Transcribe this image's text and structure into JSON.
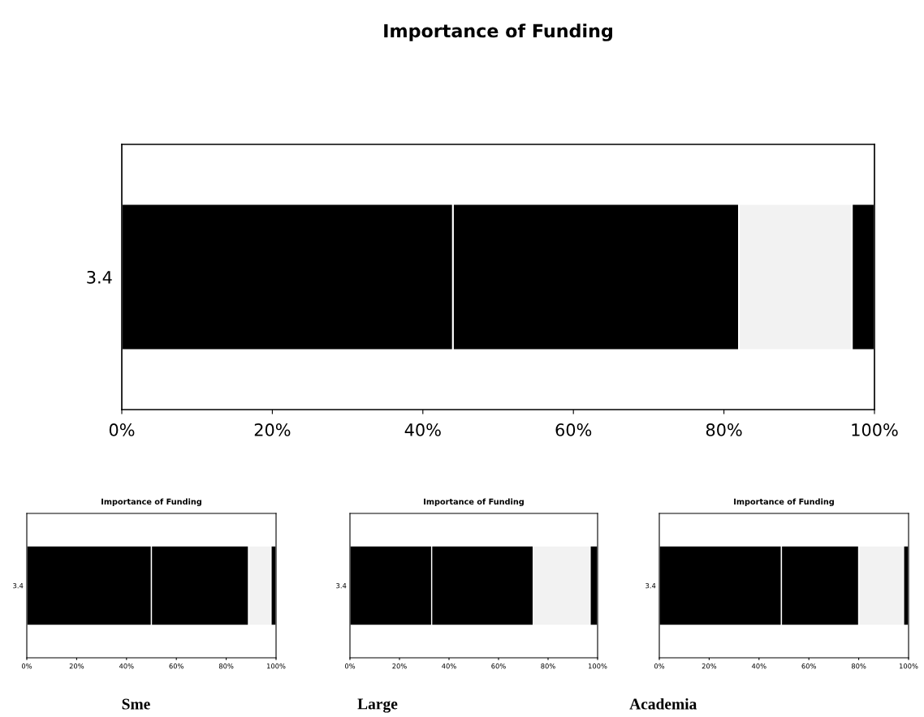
{
  "chart_data": [
    {
      "type": "bar",
      "title": "Importance of Funding",
      "orientation": "horizontal",
      "stacked": true,
      "categories": [
        "3.4"
      ],
      "series": [
        {
          "color": "#000000",
          "values": [
            44
          ]
        },
        {
          "color": "#000000",
          "values": [
            38
          ]
        },
        {
          "color": "#f2f2f2",
          "values": [
            15
          ]
        },
        {
          "color": "#000000",
          "values": [
            3
          ]
        }
      ],
      "xlim": [
        0,
        100
      ],
      "xticks": [
        {
          "value": 0,
          "label": "0%"
        },
        {
          "value": 20,
          "label": "20%"
        },
        {
          "value": 40,
          "label": "40%"
        },
        {
          "value": 60,
          "label": "60%"
        },
        {
          "value": 80,
          "label": "80%"
        },
        {
          "value": 100,
          "label": "100%"
        }
      ]
    },
    {
      "type": "bar",
      "title": "Importance of Funding",
      "orientation": "horizontal",
      "stacked": true,
      "categories": [
        "3.4"
      ],
      "series": [
        {
          "color": "#000000",
          "values": [
            50
          ]
        },
        {
          "color": "#000000",
          "values": [
            39
          ]
        },
        {
          "color": "#f2f2f2",
          "values": [
            9
          ]
        },
        {
          "color": "#000000",
          "values": [
            2
          ]
        }
      ],
      "xlim": [
        0,
        100
      ],
      "xticks": [
        {
          "value": 0,
          "label": "0%"
        },
        {
          "value": 20,
          "label": "20%"
        },
        {
          "value": 40,
          "label": "40%"
        },
        {
          "value": 60,
          "label": "60%"
        },
        {
          "value": 80,
          "label": "80%"
        },
        {
          "value": 100,
          "label": "100%"
        }
      ],
      "annotations": [
        "Sme"
      ]
    },
    {
      "type": "bar",
      "title": "Importance of Funding",
      "orientation": "horizontal",
      "stacked": true,
      "categories": [
        "3.4"
      ],
      "series": [
        {
          "color": "#000000",
          "values": [
            33
          ]
        },
        {
          "color": "#000000",
          "values": [
            41
          ]
        },
        {
          "color": "#f2f2f2",
          "values": [
            23
          ]
        },
        {
          "color": "#000000",
          "values": [
            3
          ]
        }
      ],
      "xlim": [
        0,
        100
      ],
      "xticks": [
        {
          "value": 0,
          "label": "0%"
        },
        {
          "value": 20,
          "label": "20%"
        },
        {
          "value": 40,
          "label": "40%"
        },
        {
          "value": 60,
          "label": "60%"
        },
        {
          "value": 80,
          "label": "80%"
        },
        {
          "value": 100,
          "label": "100%"
        }
      ],
      "annotations": [
        "Large"
      ]
    },
    {
      "type": "bar",
      "title": "Importance of Funding",
      "orientation": "horizontal",
      "stacked": true,
      "categories": [
        "3.4"
      ],
      "series": [
        {
          "color": "#000000",
          "values": [
            49
          ]
        },
        {
          "color": "#000000",
          "values": [
            31
          ]
        },
        {
          "color": "#f2f2f2",
          "values": [
            18
          ]
        },
        {
          "color": "#000000",
          "values": [
            2
          ]
        }
      ],
      "xlim": [
        0,
        100
      ],
      "xticks": [
        {
          "value": 0,
          "label": "0%"
        },
        {
          "value": 20,
          "label": "20%"
        },
        {
          "value": 40,
          "label": "40%"
        },
        {
          "value": 60,
          "label": "60%"
        },
        {
          "value": 80,
          "label": "80%"
        },
        {
          "value": 100,
          "label": "100%"
        }
      ],
      "annotations": [
        "Academia"
      ]
    }
  ]
}
